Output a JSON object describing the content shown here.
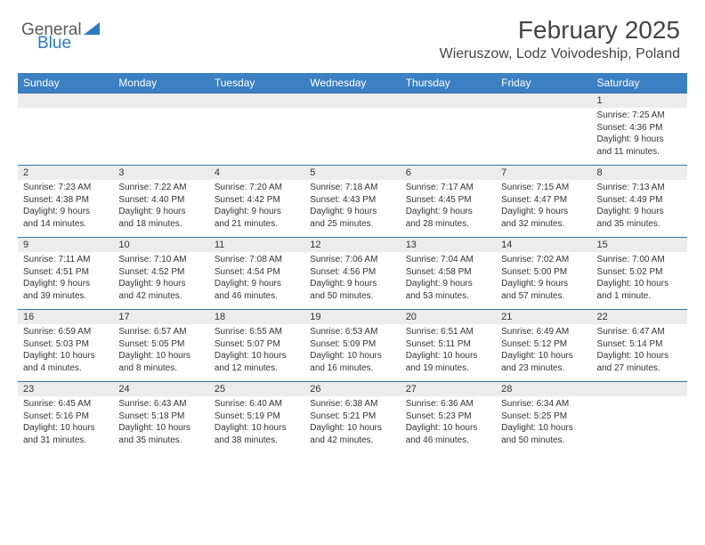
{
  "logo": {
    "text1": "General",
    "text2": "Blue"
  },
  "title": "February 2025",
  "location": "Wieruszow, Lodz Voivodeship, Poland",
  "brand_color": "#3a80c2",
  "header_bg": "#3a80c2",
  "row_bg": "#ececec",
  "border_color": "#3a6fa5",
  "day_labels": [
    "Sunday",
    "Monday",
    "Tuesday",
    "Wednesday",
    "Thursday",
    "Friday",
    "Saturday"
  ],
  "weeks": [
    {
      "nums": [
        "",
        "",
        "",
        "",
        "",
        "",
        "1"
      ],
      "cells": [
        null,
        null,
        null,
        null,
        null,
        null,
        {
          "sunrise": "Sunrise: 7:25 AM",
          "sunset": "Sunset: 4:36 PM",
          "d1": "Daylight: 9 hours",
          "d2": "and 11 minutes."
        }
      ]
    },
    {
      "nums": [
        "2",
        "3",
        "4",
        "5",
        "6",
        "7",
        "8"
      ],
      "cells": [
        {
          "sunrise": "Sunrise: 7:23 AM",
          "sunset": "Sunset: 4:38 PM",
          "d1": "Daylight: 9 hours",
          "d2": "and 14 minutes."
        },
        {
          "sunrise": "Sunrise: 7:22 AM",
          "sunset": "Sunset: 4:40 PM",
          "d1": "Daylight: 9 hours",
          "d2": "and 18 minutes."
        },
        {
          "sunrise": "Sunrise: 7:20 AM",
          "sunset": "Sunset: 4:42 PM",
          "d1": "Daylight: 9 hours",
          "d2": "and 21 minutes."
        },
        {
          "sunrise": "Sunrise: 7:18 AM",
          "sunset": "Sunset: 4:43 PM",
          "d1": "Daylight: 9 hours",
          "d2": "and 25 minutes."
        },
        {
          "sunrise": "Sunrise: 7:17 AM",
          "sunset": "Sunset: 4:45 PM",
          "d1": "Daylight: 9 hours",
          "d2": "and 28 minutes."
        },
        {
          "sunrise": "Sunrise: 7:15 AM",
          "sunset": "Sunset: 4:47 PM",
          "d1": "Daylight: 9 hours",
          "d2": "and 32 minutes."
        },
        {
          "sunrise": "Sunrise: 7:13 AM",
          "sunset": "Sunset: 4:49 PM",
          "d1": "Daylight: 9 hours",
          "d2": "and 35 minutes."
        }
      ]
    },
    {
      "nums": [
        "9",
        "10",
        "11",
        "12",
        "13",
        "14",
        "15"
      ],
      "cells": [
        {
          "sunrise": "Sunrise: 7:11 AM",
          "sunset": "Sunset: 4:51 PM",
          "d1": "Daylight: 9 hours",
          "d2": "and 39 minutes."
        },
        {
          "sunrise": "Sunrise: 7:10 AM",
          "sunset": "Sunset: 4:52 PM",
          "d1": "Daylight: 9 hours",
          "d2": "and 42 minutes."
        },
        {
          "sunrise": "Sunrise: 7:08 AM",
          "sunset": "Sunset: 4:54 PM",
          "d1": "Daylight: 9 hours",
          "d2": "and 46 minutes."
        },
        {
          "sunrise": "Sunrise: 7:06 AM",
          "sunset": "Sunset: 4:56 PM",
          "d1": "Daylight: 9 hours",
          "d2": "and 50 minutes."
        },
        {
          "sunrise": "Sunrise: 7:04 AM",
          "sunset": "Sunset: 4:58 PM",
          "d1": "Daylight: 9 hours",
          "d2": "and 53 minutes."
        },
        {
          "sunrise": "Sunrise: 7:02 AM",
          "sunset": "Sunset: 5:00 PM",
          "d1": "Daylight: 9 hours",
          "d2": "and 57 minutes."
        },
        {
          "sunrise": "Sunrise: 7:00 AM",
          "sunset": "Sunset: 5:02 PM",
          "d1": "Daylight: 10 hours",
          "d2": "and 1 minute."
        }
      ]
    },
    {
      "nums": [
        "16",
        "17",
        "18",
        "19",
        "20",
        "21",
        "22"
      ],
      "cells": [
        {
          "sunrise": "Sunrise: 6:59 AM",
          "sunset": "Sunset: 5:03 PM",
          "d1": "Daylight: 10 hours",
          "d2": "and 4 minutes."
        },
        {
          "sunrise": "Sunrise: 6:57 AM",
          "sunset": "Sunset: 5:05 PM",
          "d1": "Daylight: 10 hours",
          "d2": "and 8 minutes."
        },
        {
          "sunrise": "Sunrise: 6:55 AM",
          "sunset": "Sunset: 5:07 PM",
          "d1": "Daylight: 10 hours",
          "d2": "and 12 minutes."
        },
        {
          "sunrise": "Sunrise: 6:53 AM",
          "sunset": "Sunset: 5:09 PM",
          "d1": "Daylight: 10 hours",
          "d2": "and 16 minutes."
        },
        {
          "sunrise": "Sunrise: 6:51 AM",
          "sunset": "Sunset: 5:11 PM",
          "d1": "Daylight: 10 hours",
          "d2": "and 19 minutes."
        },
        {
          "sunrise": "Sunrise: 6:49 AM",
          "sunset": "Sunset: 5:12 PM",
          "d1": "Daylight: 10 hours",
          "d2": "and 23 minutes."
        },
        {
          "sunrise": "Sunrise: 6:47 AM",
          "sunset": "Sunset: 5:14 PM",
          "d1": "Daylight: 10 hours",
          "d2": "and 27 minutes."
        }
      ]
    },
    {
      "nums": [
        "23",
        "24",
        "25",
        "26",
        "27",
        "28",
        ""
      ],
      "cells": [
        {
          "sunrise": "Sunrise: 6:45 AM",
          "sunset": "Sunset: 5:16 PM",
          "d1": "Daylight: 10 hours",
          "d2": "and 31 minutes."
        },
        {
          "sunrise": "Sunrise: 6:43 AM",
          "sunset": "Sunset: 5:18 PM",
          "d1": "Daylight: 10 hours",
          "d2": "and 35 minutes."
        },
        {
          "sunrise": "Sunrise: 6:40 AM",
          "sunset": "Sunset: 5:19 PM",
          "d1": "Daylight: 10 hours",
          "d2": "and 38 minutes."
        },
        {
          "sunrise": "Sunrise: 6:38 AM",
          "sunset": "Sunset: 5:21 PM",
          "d1": "Daylight: 10 hours",
          "d2": "and 42 minutes."
        },
        {
          "sunrise": "Sunrise: 6:36 AM",
          "sunset": "Sunset: 5:23 PM",
          "d1": "Daylight: 10 hours",
          "d2": "and 46 minutes."
        },
        {
          "sunrise": "Sunrise: 6:34 AM",
          "sunset": "Sunset: 5:25 PM",
          "d1": "Daylight: 10 hours",
          "d2": "and 50 minutes."
        },
        null
      ]
    }
  ]
}
